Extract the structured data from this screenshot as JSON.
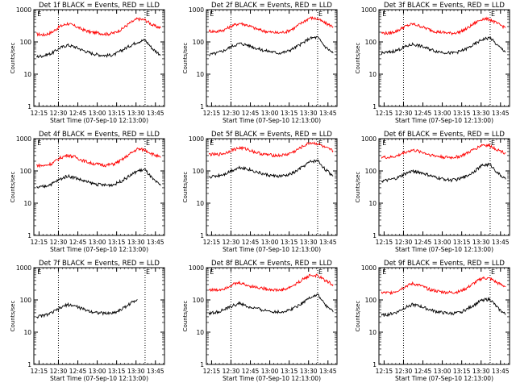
{
  "chart_data": [
    {
      "type": "line",
      "title": "Det 1f BLACK = Events, RED = LLD",
      "xlabel": "Start Time (07-Sep-10 12:13:00)",
      "ylabel": "Counts/sec",
      "xticks": [
        "12:15",
        "12:30",
        "12:45",
        "13:00",
        "13:15",
        "13:30",
        "13:45"
      ],
      "yticks": [
        "1",
        "10",
        "100",
        "1000"
      ],
      "ylim": [
        1,
        1000
      ],
      "yscale": "log",
      "markers": [
        "E",
        "E"
      ],
      "series": [
        {
          "color": "#ff0000",
          "x_min": [
            0,
            6,
            12,
            18,
            24,
            30,
            36,
            42,
            48,
            54,
            60,
            66,
            72,
            78,
            84,
            90,
            96
          ],
          "y": [
            175,
            165,
            200,
            300,
            370,
            310,
            240,
            200,
            190,
            175,
            190,
            250,
            380,
            520,
            480,
            330,
            270
          ]
        },
        {
          "color": "#000000",
          "x_min": [
            0,
            6,
            12,
            18,
            24,
            30,
            36,
            42,
            48,
            54,
            60,
            66,
            72,
            78,
            84,
            90,
            96
          ],
          "y": [
            35,
            38,
            45,
            65,
            80,
            70,
            55,
            45,
            40,
            38,
            40,
            55,
            75,
            100,
            115,
            60,
            40
          ]
        }
      ]
    },
    {
      "type": "line",
      "title": "Det 2f BLACK = Events, RED = LLD",
      "xlabel": "Start Time (07-Sep-10 12:13:00)",
      "ylabel": "Counts/sec",
      "xticks": [
        "12:15",
        "12:30",
        "12:45",
        "13:00",
        "13:15",
        "13:30",
        "13:45"
      ],
      "yticks": [
        "1",
        "10",
        "100",
        "1000"
      ],
      "ylim": [
        1,
        1000
      ],
      "yscale": "log",
      "markers": [
        "E",
        "E"
      ],
      "series": [
        {
          "color": "#ff0000",
          "x_min": [
            0,
            6,
            12,
            18,
            24,
            30,
            36,
            42,
            48,
            54,
            60,
            66,
            72,
            78,
            84,
            90,
            96
          ],
          "y": [
            220,
            210,
            240,
            320,
            380,
            330,
            260,
            220,
            200,
            190,
            210,
            270,
            400,
            560,
            520,
            380,
            300
          ]
        },
        {
          "color": "#000000",
          "x_min": [
            0,
            6,
            12,
            18,
            24,
            30,
            36,
            42,
            48,
            54,
            60,
            66,
            72,
            78,
            84,
            90,
            96
          ],
          "y": [
            40,
            45,
            55,
            75,
            90,
            80,
            65,
            55,
            50,
            45,
            50,
            65,
            90,
            130,
            140,
            70,
            45
          ]
        }
      ]
    },
    {
      "type": "line",
      "title": "Det 3f BLACK = Events, RED = LLD",
      "xlabel": "Start Time (07-Sep-10 12:13:00)",
      "ylabel": "Counts/sec",
      "xticks": [
        "12:15",
        "12:30",
        "12:45",
        "13:00",
        "13:15",
        "13:30",
        "13:45"
      ],
      "yticks": [
        "1",
        "10",
        "100",
        "1000"
      ],
      "ylim": [
        1,
        1000
      ],
      "yscale": "log",
      "markers": [
        "E",
        "E"
      ],
      "series": [
        {
          "color": "#ff0000",
          "x_min": [
            0,
            6,
            12,
            18,
            24,
            30,
            36,
            42,
            48,
            54,
            60,
            66,
            72,
            78,
            84,
            90,
            96
          ],
          "y": [
            190,
            185,
            220,
            300,
            360,
            310,
            250,
            210,
            195,
            185,
            200,
            260,
            380,
            520,
            500,
            360,
            280
          ]
        },
        {
          "color": "#000000",
          "x_min": [
            0,
            6,
            12,
            18,
            24,
            30,
            36,
            42,
            48,
            54,
            60,
            66,
            72,
            78,
            84,
            90,
            96
          ],
          "y": [
            45,
            48,
            55,
            70,
            85,
            75,
            62,
            52,
            48,
            45,
            50,
            62,
            85,
            120,
            135,
            75,
            50
          ]
        }
      ]
    },
    {
      "type": "line",
      "title": "Det 4f BLACK = Events, RED = LLD",
      "xlabel": "Start Time (07-Sep-10 12:13:00)",
      "ylabel": "Counts/sec",
      "xticks": [
        "12:15",
        "12:30",
        "12:45",
        "13:00",
        "13:15",
        "13:30",
        "13:45"
      ],
      "yticks": [
        "1",
        "10",
        "100",
        "1000"
      ],
      "ylim": [
        1,
        1000
      ],
      "yscale": "log",
      "markers": [
        "E",
        "E"
      ],
      "series": [
        {
          "color": "#ff0000",
          "x_min": [
            0,
            6,
            12,
            18,
            24,
            30,
            36,
            42,
            48,
            54,
            60,
            66,
            72,
            78,
            84,
            90,
            96
          ],
          "y": [
            150,
            145,
            170,
            250,
            310,
            270,
            210,
            175,
            160,
            150,
            165,
            220,
            330,
            480,
            450,
            330,
            260
          ]
        },
        {
          "color": "#000000",
          "x_min": [
            0,
            6,
            12,
            18,
            24,
            30,
            36,
            42,
            48,
            54,
            60,
            66,
            72,
            78,
            84,
            90,
            96
          ],
          "y": [
            30,
            33,
            40,
            55,
            70,
            62,
            50,
            42,
            38,
            36,
            38,
            50,
            70,
            100,
            110,
            55,
            35
          ]
        }
      ]
    },
    {
      "type": "line",
      "title": "Det 5f BLACK = Events, RED = LLD",
      "xlabel": "Start Time (07-Sep-10 12:13:00)",
      "ylabel": "Counts/sec",
      "xticks": [
        "12:15",
        "12:30",
        "12:45",
        "13:00",
        "13:15",
        "13:30",
        "13:45"
      ],
      "yticks": [
        "1",
        "10",
        "100",
        "1000"
      ],
      "ylim": [
        1,
        1000
      ],
      "yscale": "log",
      "markers": [
        "E",
        "E"
      ],
      "series": [
        {
          "color": "#ff0000",
          "x_min": [
            0,
            6,
            12,
            18,
            24,
            30,
            36,
            42,
            48,
            54,
            60,
            66,
            72,
            78,
            84,
            90,
            96
          ],
          "y": [
            330,
            320,
            350,
            450,
            520,
            470,
            380,
            330,
            310,
            300,
            320,
            400,
            560,
            750,
            700,
            520,
            420
          ]
        },
        {
          "color": "#000000",
          "x_min": [
            0,
            6,
            12,
            18,
            24,
            30,
            36,
            42,
            48,
            54,
            60,
            66,
            72,
            78,
            84,
            90,
            96
          ],
          "y": [
            65,
            70,
            80,
            105,
            130,
            115,
            95,
            80,
            72,
            68,
            72,
            90,
            130,
            190,
            210,
            110,
            70
          ]
        }
      ]
    },
    {
      "type": "line",
      "title": "Det 6f BLACK = Events, RED = LLD",
      "xlabel": "Start Time (07-Sep-10 12:13:00)",
      "ylabel": "Counts/sec",
      "xticks": [
        "12:15",
        "12:30",
        "12:45",
        "13:00",
        "13:15",
        "13:30",
        "13:45"
      ],
      "yticks": [
        "1",
        "10",
        "100",
        "1000"
      ],
      "ylim": [
        1,
        1000
      ],
      "yscale": "log",
      "markers": [
        "E",
        "E"
      ],
      "series": [
        {
          "color": "#ff0000",
          "x_min": [
            0,
            6,
            12,
            18,
            24,
            30,
            36,
            42,
            48,
            54,
            60,
            66,
            72,
            78,
            84,
            90,
            96
          ],
          "y": [
            270,
            260,
            290,
            380,
            440,
            400,
            330,
            290,
            270,
            260,
            280,
            350,
            480,
            650,
            600,
            450,
            360
          ]
        },
        {
          "color": "#000000",
          "x_min": [
            0,
            6,
            12,
            18,
            24,
            30,
            36,
            42,
            48,
            54,
            60,
            66,
            72,
            78,
            84,
            90,
            96
          ],
          "y": [
            48,
            52,
            60,
            80,
            100,
            90,
            75,
            62,
            56,
            52,
            56,
            70,
            100,
            150,
            160,
            85,
            55
          ]
        }
      ]
    },
    {
      "type": "line",
      "title": "Det 7f BLACK = Events, RED = LLD",
      "xlabel": "Start Time (07-Sep-10 12:13:00)",
      "ylabel": "Counts/sec",
      "xticks": [
        "12:15",
        "12:30",
        "12:45",
        "13:00",
        "13:15",
        "13:30",
        "13:45"
      ],
      "yticks": [
        "1",
        "10",
        "100",
        "1000"
      ],
      "ylim": [
        1,
        1000
      ],
      "yscale": "log",
      "markers": [
        "E",
        "E"
      ],
      "series": [
        {
          "color": "#000000",
          "x_min": [
            0,
            6,
            12,
            18,
            24,
            30,
            36,
            42,
            48,
            54,
            60,
            66,
            72,
            78
          ],
          "y": [
            30,
            33,
            40,
            55,
            72,
            65,
            52,
            44,
            40,
            38,
            40,
            52,
            75,
            105
          ]
        }
      ]
    },
    {
      "type": "line",
      "title": "Det 8f BLACK = Events, RED = LLD",
      "xlabel": "Start Time (07-Sep-10 12:13:00)",
      "ylabel": "Counts/sec",
      "xticks": [
        "12:15",
        "12:30",
        "12:45",
        "13:00",
        "13:15",
        "13:30",
        "13:45"
      ],
      "yticks": [
        "1",
        "10",
        "100",
        "1000"
      ],
      "ylim": [
        1,
        1000
      ],
      "yscale": "log",
      "markers": [
        "E",
        "E"
      ],
      "series": [
        {
          "color": "#ff0000",
          "x_min": [
            0,
            6,
            12,
            18,
            24,
            30,
            36,
            42,
            48,
            54,
            60,
            66,
            72,
            78,
            84,
            90,
            96
          ],
          "y": [
            210,
            200,
            230,
            300,
            340,
            280,
            250,
            230,
            210,
            200,
            220,
            290,
            420,
            580,
            560,
            400,
            300
          ]
        },
        {
          "color": "#000000",
          "x_min": [
            0,
            6,
            12,
            18,
            24,
            30,
            36,
            42,
            48,
            54,
            60,
            66,
            72,
            78,
            84,
            90,
            96
          ],
          "y": [
            38,
            42,
            50,
            65,
            80,
            60,
            55,
            48,
            45,
            42,
            45,
            58,
            80,
            120,
            145,
            70,
            42
          ]
        }
      ]
    },
    {
      "type": "line",
      "title": "Det 9f BLACK = Events, RED = LLD",
      "xlabel": "Start Time (07-Sep-10 12:13:00)",
      "ylabel": "Counts/sec",
      "xticks": [
        "12:15",
        "12:30",
        "12:45",
        "13:00",
        "13:15",
        "13:30",
        "13:45"
      ],
      "yticks": [
        "1",
        "10",
        "100",
        "1000"
      ],
      "ylim": [
        1,
        1000
      ],
      "yscale": "log",
      "markers": [
        "E",
        "E"
      ],
      "series": [
        {
          "color": "#ff0000",
          "x_min": [
            0,
            6,
            12,
            18,
            24,
            30,
            36,
            42,
            48,
            54,
            60,
            66,
            72,
            78,
            84,
            90,
            96
          ],
          "y": [
            170,
            165,
            190,
            260,
            320,
            280,
            220,
            190,
            175,
            170,
            180,
            235,
            340,
            480,
            460,
            330,
            260
          ]
        },
        {
          "color": "#000000",
          "x_min": [
            0,
            6,
            12,
            18,
            24,
            30,
            36,
            42,
            48,
            54,
            60,
            66,
            72,
            78,
            84,
            90,
            96
          ],
          "y": [
            33,
            36,
            42,
            58,
            72,
            64,
            52,
            44,
            40,
            38,
            40,
            52,
            72,
            100,
            105,
            55,
            35
          ]
        }
      ]
    }
  ]
}
